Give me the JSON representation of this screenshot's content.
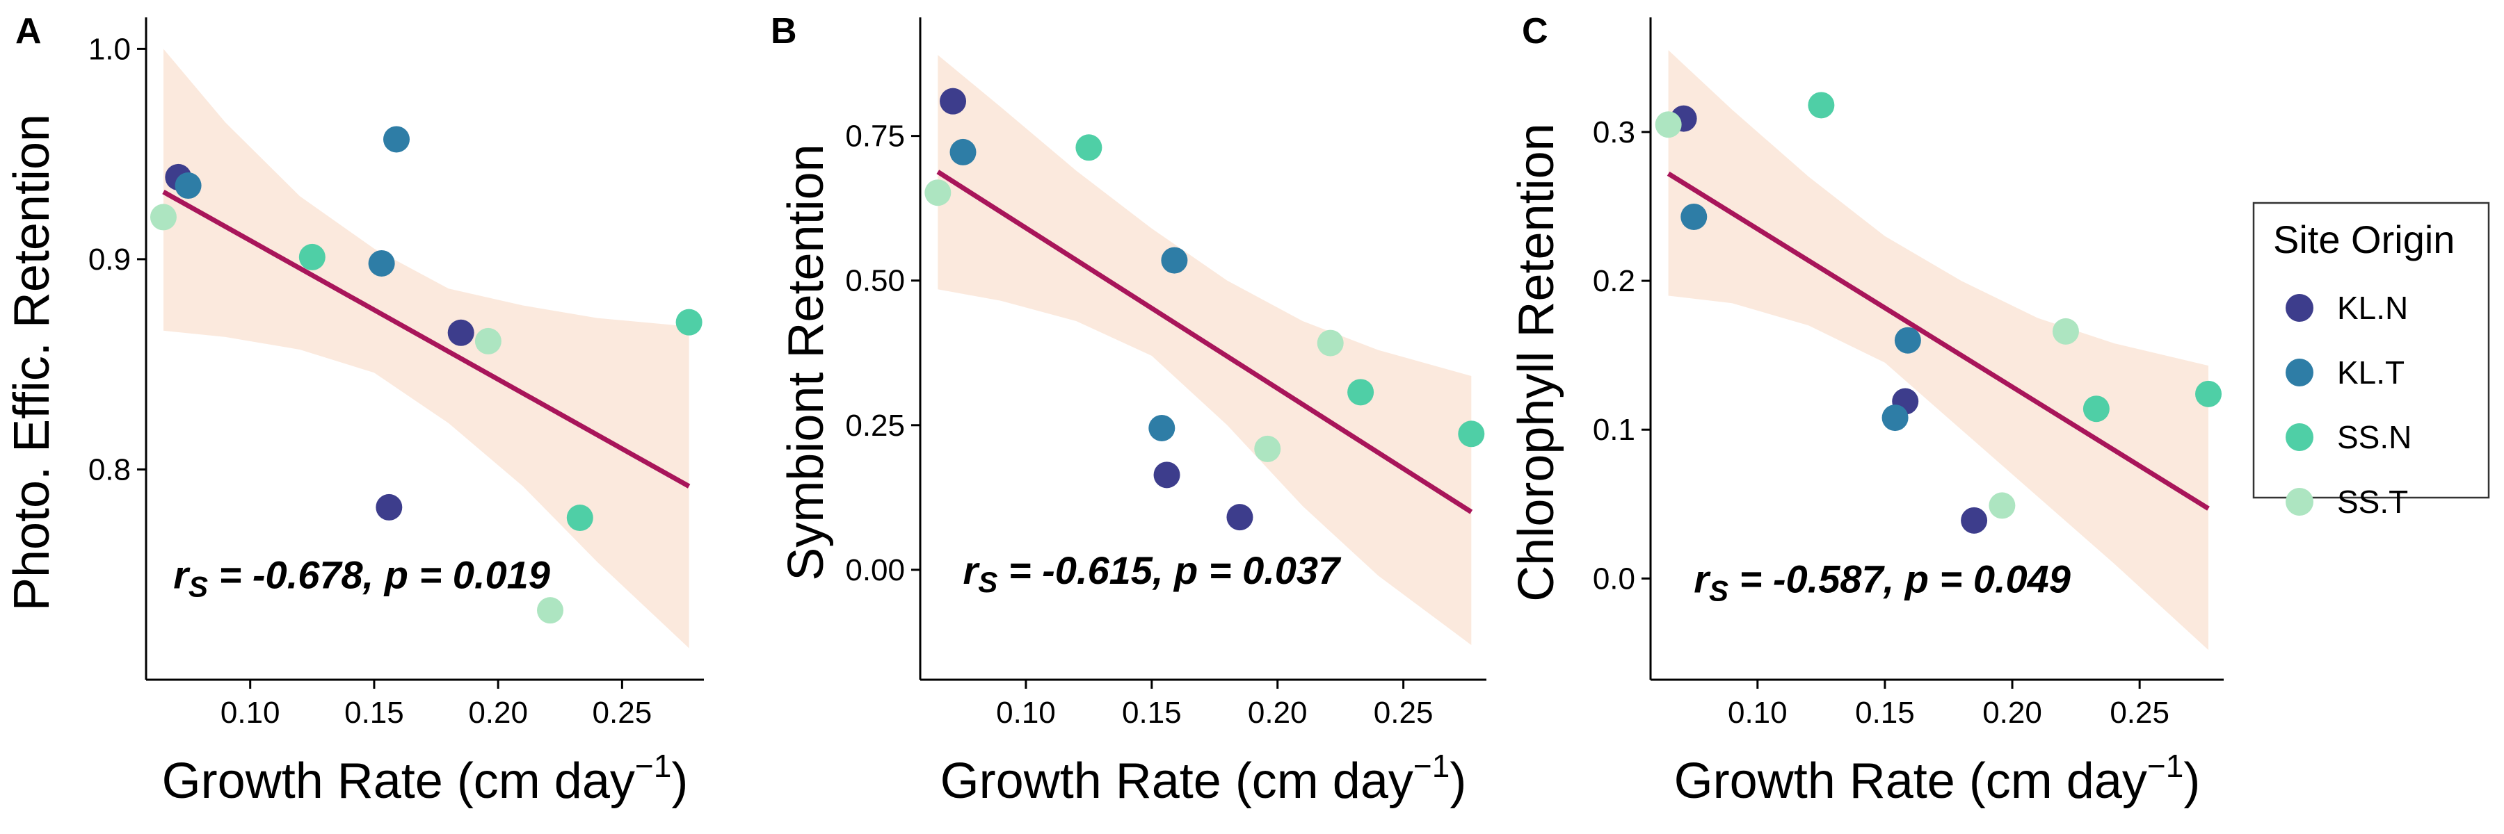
{
  "legend": {
    "title": "Site Origin",
    "entries": [
      {
        "label": "KL.N",
        "color": "#3D3D8C"
      },
      {
        "label": "KL.T",
        "color": "#2E7DA6"
      },
      {
        "label": "SS.N",
        "color": "#4FCFA6"
      },
      {
        "label": "SS.T",
        "color": "#ADE5C1"
      }
    ]
  },
  "fit_line_color": "#A8155A",
  "ci_band_color": "#FBE9DD",
  "chart_data": [
    {
      "type": "scatter",
      "panel": "A",
      "xlabel_main": "Growth Rate (cm day",
      "xlabel_sup": "−1",
      "xlabel_end": ")",
      "ylabel": "Photo. Effic. Retention",
      "xlim": [
        0.058,
        0.283
      ],
      "ylim": [
        0.7,
        1.015
      ],
      "xticks": [
        0.1,
        0.15,
        0.2,
        0.25
      ],
      "xtick_labels": [
        "0.10",
        "0.15",
        "0.20",
        "0.25"
      ],
      "yticks": [
        0.8,
        0.9,
        1.0
      ],
      "ytick_labels": [
        "0.8",
        "0.9",
        "1.0"
      ],
      "stat": {
        "prefix": "r",
        "sub": "S",
        "rest": " = -0.678, p = 0.019",
        "x": 0.069,
        "y": 0.75
      },
      "fit": {
        "x": [
          0.065,
          0.277
        ],
        "y": [
          0.932,
          0.792
        ]
      },
      "band": {
        "x": [
          0.065,
          0.09,
          0.12,
          0.15,
          0.18,
          0.21,
          0.24,
          0.277
        ],
        "upper": [
          1.0,
          0.965,
          0.93,
          0.905,
          0.886,
          0.878,
          0.872,
          0.868
        ],
        "lower": [
          0.866,
          0.863,
          0.857,
          0.846,
          0.822,
          0.792,
          0.756,
          0.715
        ]
      },
      "points": [
        {
          "x": 0.071,
          "y": 0.939,
          "group": "KL.N"
        },
        {
          "x": 0.156,
          "y": 0.782,
          "group": "KL.N"
        },
        {
          "x": 0.185,
          "y": 0.865,
          "group": "KL.N"
        },
        {
          "x": 0.075,
          "y": 0.935,
          "group": "KL.T"
        },
        {
          "x": 0.153,
          "y": 0.898,
          "group": "KL.T"
        },
        {
          "x": 0.159,
          "y": 0.957,
          "group": "KL.T"
        },
        {
          "x": 0.125,
          "y": 0.901,
          "group": "SS.N"
        },
        {
          "x": 0.233,
          "y": 0.777,
          "group": "SS.N"
        },
        {
          "x": 0.277,
          "y": 0.87,
          "group": "SS.N"
        },
        {
          "x": 0.065,
          "y": 0.92,
          "group": "SS.T"
        },
        {
          "x": 0.196,
          "y": 0.861,
          "group": "SS.T"
        },
        {
          "x": 0.221,
          "y": 0.733,
          "group": "SS.T"
        }
      ]
    },
    {
      "type": "scatter",
      "panel": "B",
      "xlabel_main": "Growth Rate (cm day",
      "xlabel_sup": "−1",
      "xlabel_end": ")",
      "ylabel": "Symbiont Retention",
      "xlim": [
        0.058,
        0.283
      ],
      "ylim": [
        -0.19,
        0.955
      ],
      "xticks": [
        0.1,
        0.15,
        0.2,
        0.25
      ],
      "xtick_labels": [
        "0.10",
        "0.15",
        "0.20",
        "0.25"
      ],
      "yticks": [
        0.0,
        0.25,
        0.5,
        0.75
      ],
      "ytick_labels": [
        "0.00",
        "0.25",
        "0.50",
        "0.75"
      ],
      "stat": {
        "prefix": "r",
        "sub": "S",
        "rest": " = -0.615, p = 0.037",
        "x": 0.075,
        "y": 0.0
      },
      "fit": {
        "x": [
          0.065,
          0.277
        ],
        "y": [
          0.688,
          0.1
        ]
      },
      "band": {
        "x": [
          0.065,
          0.09,
          0.12,
          0.15,
          0.18,
          0.21,
          0.24,
          0.277
        ],
        "upper": [
          0.89,
          0.8,
          0.69,
          0.59,
          0.5,
          0.43,
          0.38,
          0.335
        ],
        "lower": [
          0.485,
          0.465,
          0.43,
          0.37,
          0.25,
          0.11,
          -0.01,
          -0.13
        ]
      },
      "points": [
        {
          "x": 0.071,
          "y": 0.81,
          "group": "KL.N"
        },
        {
          "x": 0.156,
          "y": 0.164,
          "group": "KL.N"
        },
        {
          "x": 0.185,
          "y": 0.091,
          "group": "KL.N"
        },
        {
          "x": 0.075,
          "y": 0.722,
          "group": "KL.T"
        },
        {
          "x": 0.154,
          "y": 0.245,
          "group": "KL.T"
        },
        {
          "x": 0.159,
          "y": 0.535,
          "group": "KL.T"
        },
        {
          "x": 0.125,
          "y": 0.73,
          "group": "SS.N"
        },
        {
          "x": 0.233,
          "y": 0.307,
          "group": "SS.N"
        },
        {
          "x": 0.277,
          "y": 0.235,
          "group": "SS.N"
        },
        {
          "x": 0.065,
          "y": 0.652,
          "group": "SS.T"
        },
        {
          "x": 0.196,
          "y": 0.209,
          "group": "SS.T"
        },
        {
          "x": 0.221,
          "y": 0.392,
          "group": "SS.T"
        }
      ]
    },
    {
      "type": "scatter",
      "panel": "C",
      "xlabel_main": "Growth Rate (cm day",
      "xlabel_sup": "−1",
      "xlabel_end": ")",
      "ylabel": "Chlorophyll Retention",
      "xlim": [
        0.058,
        0.283
      ],
      "ylim": [
        -0.068,
        0.377
      ],
      "xticks": [
        0.1,
        0.15,
        0.2,
        0.25
      ],
      "xtick_labels": [
        "0.10",
        "0.15",
        "0.20",
        "0.25"
      ],
      "yticks": [
        0.0,
        0.1,
        0.2,
        0.3
      ],
      "ytick_labels": [
        "0.0",
        "0.1",
        "0.2",
        "0.3"
      ],
      "stat": {
        "prefix": "r",
        "sub": "S",
        "rest": " = -0.587, p = 0.049",
        "x": 0.075,
        "y": 0.0
      },
      "fit": {
        "x": [
          0.065,
          0.277
        ],
        "y": [
          0.272,
          0.047
        ]
      },
      "band": {
        "x": [
          0.065,
          0.09,
          0.12,
          0.15,
          0.18,
          0.21,
          0.24,
          0.277
        ],
        "upper": [
          0.355,
          0.315,
          0.27,
          0.23,
          0.2,
          0.175,
          0.158,
          0.143
        ],
        "lower": [
          0.19,
          0.185,
          0.17,
          0.145,
          0.1,
          0.055,
          0.01,
          -0.048
        ]
      },
      "points": [
        {
          "x": 0.071,
          "y": 0.309,
          "group": "KL.N"
        },
        {
          "x": 0.158,
          "y": 0.119,
          "group": "KL.N"
        },
        {
          "x": 0.185,
          "y": 0.039,
          "group": "KL.N"
        },
        {
          "x": 0.075,
          "y": 0.243,
          "group": "KL.T"
        },
        {
          "x": 0.154,
          "y": 0.108,
          "group": "KL.T"
        },
        {
          "x": 0.159,
          "y": 0.16,
          "group": "KL.T"
        },
        {
          "x": 0.125,
          "y": 0.318,
          "group": "SS.N"
        },
        {
          "x": 0.233,
          "y": 0.114,
          "group": "SS.N"
        },
        {
          "x": 0.277,
          "y": 0.124,
          "group": "SS.N"
        },
        {
          "x": 0.065,
          "y": 0.305,
          "group": "SS.T"
        },
        {
          "x": 0.196,
          "y": 0.049,
          "group": "SS.T"
        },
        {
          "x": 0.221,
          "y": 0.166,
          "group": "SS.T"
        }
      ]
    }
  ]
}
